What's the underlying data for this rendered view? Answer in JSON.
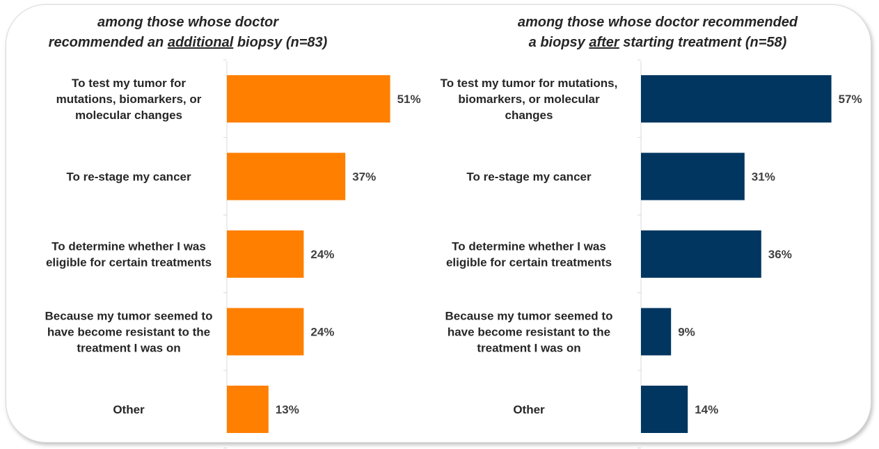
{
  "chart_data": [
    {
      "type": "bar",
      "orientation": "horizontal",
      "title_parts": [
        "among those whose doctor",
        "recommended an ",
        "additional",
        " biopsy ",
        "(n=83)"
      ],
      "categories": [
        [
          "To test my tumor for",
          "mutations, biomarkers, or",
          "molecular changes"
        ],
        [
          "To re-stage my cancer"
        ],
        [
          "To determine whether I was",
          "eligible for certain treatments"
        ],
        [
          "Because my tumor seemed to",
          "have become resistant to the",
          "treatment I was on"
        ],
        [
          "Other"
        ]
      ],
      "values": [
        51,
        37,
        24,
        24,
        13
      ],
      "value_labels": [
        "51%",
        "37%",
        "24%",
        "24%",
        "13%"
      ],
      "color": "#FF7F00",
      "xlim": [
        0,
        100
      ]
    },
    {
      "type": "bar",
      "orientation": "horizontal",
      "title_parts": [
        "among those whose doctor recommended",
        "a biopsy ",
        "after",
        " starting treatment ",
        "(n=58)"
      ],
      "categories": [
        [
          "To test my tumor for mutations,",
          "biomarkers, or molecular",
          "changes"
        ],
        [
          "To re-stage my cancer"
        ],
        [
          "To determine whether I was",
          "eligible for certain treatments"
        ],
        [
          "Because my tumor seemed to",
          "have become resistant to the",
          "treatment I was on"
        ],
        [
          "Other"
        ]
      ],
      "values": [
        57,
        31,
        36,
        9,
        14
      ],
      "value_labels": [
        "57%",
        "31%",
        "36%",
        "9%",
        "14%"
      ],
      "color": "#003660",
      "xlim": [
        0,
        100
      ]
    }
  ]
}
